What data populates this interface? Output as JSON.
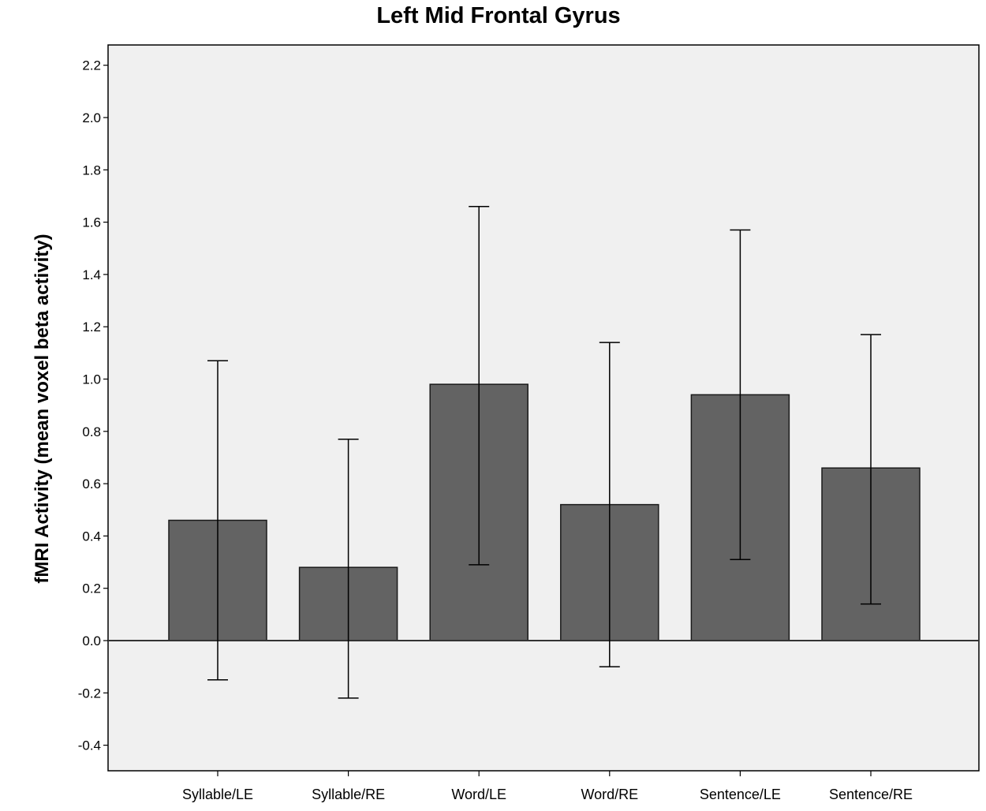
{
  "chart_data": {
    "type": "bar",
    "title": "Left Mid Frontal Gyrus",
    "xlabel": "",
    "ylabel": "fMRI Activity (mean voxel beta activity)",
    "ylim": [
      -0.5,
      2.28
    ],
    "yticks": [
      2.2,
      2.0,
      1.8,
      1.6,
      1.4,
      1.2,
      1.0,
      0.8,
      0.6,
      0.4,
      0.2,
      0.0,
      -0.2,
      -0.4
    ],
    "categories": [
      "Syllable/LE",
      "Syllable/RE",
      "Word/LE",
      "Word/RE",
      "Sentence/LE",
      "Sentence/RE"
    ],
    "values": [
      0.46,
      0.28,
      0.98,
      0.52,
      0.94,
      0.66
    ],
    "error_low": [
      -0.15,
      -0.22,
      0.29,
      -0.1,
      0.31,
      0.14
    ],
    "error_high": [
      1.07,
      0.77,
      1.66,
      1.14,
      1.57,
      1.17
    ],
    "grid": false,
    "colors": {
      "bar": "#636363",
      "background": "#f0f0f0",
      "axis": "#000000"
    }
  }
}
